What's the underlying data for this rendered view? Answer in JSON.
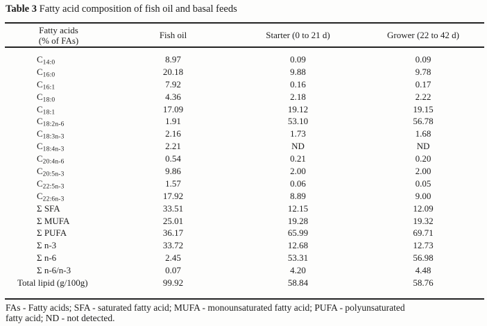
{
  "title": {
    "bold": "Table 3",
    "rest": " Fatty acid composition of fish oil and basal feeds"
  },
  "table": {
    "header": {
      "col1_line1": "Fatty acids",
      "col1_line2": "(% of FAs)",
      "col2": "Fish oil",
      "col3": "Starter (0 to 21 d)",
      "col4": "Grower (22 to 42 d)"
    },
    "rows": [
      {
        "base": "C",
        "sub": "14:0",
        "values": [
          "8.97",
          "0.09",
          "0.09"
        ]
      },
      {
        "base": "C",
        "sub": "16:0",
        "values": [
          "20.18",
          "9.88",
          "9.78"
        ]
      },
      {
        "base": "C",
        "sub": "16:1",
        "values": [
          "7.92",
          "0.16",
          "0.17"
        ]
      },
      {
        "base": "C",
        "sub": "18:0",
        "values": [
          "4.36",
          "2.18",
          "2.22"
        ]
      },
      {
        "base": "C",
        "sub": "18:1",
        "values": [
          "17.09",
          "19.12",
          "19.15"
        ]
      },
      {
        "base": "C",
        "sub": "18:2n-6",
        "values": [
          "1.91",
          "53.10",
          "56.78"
        ]
      },
      {
        "base": "C",
        "sub": "18:3n-3",
        "values": [
          "2.16",
          "1.73",
          "1.68"
        ]
      },
      {
        "base": "C",
        "sub": "18:4n-3",
        "values": [
          "2.21",
          "ND",
          "ND"
        ]
      },
      {
        "base": "C",
        "sub": "20:4n-6",
        "values": [
          "0.54",
          "0.21",
          "0.20"
        ]
      },
      {
        "base": "C",
        "sub": "20:5n-3",
        "values": [
          "9.86",
          "2.00",
          "2.00"
        ]
      },
      {
        "base": "C",
        "sub": "22:5n-3",
        "values": [
          "1.57",
          "0.06",
          "0.05"
        ]
      },
      {
        "base": "C",
        "sub": "22:6n-3",
        "values": [
          "17.92",
          "8.89",
          "9.00"
        ]
      },
      {
        "base": "Σ SFA",
        "sub": "",
        "values": [
          "33.51",
          "12.15",
          "12.09"
        ]
      },
      {
        "base": "Σ MUFA",
        "sub": "",
        "values": [
          "25.01",
          "19.28",
          "19.32"
        ]
      },
      {
        "base": "Σ PUFA",
        "sub": "",
        "values": [
          "36.17",
          "65.99",
          "69.71"
        ]
      },
      {
        "base": "Σ n-3",
        "sub": "",
        "values": [
          "33.72",
          "12.68",
          "12.73"
        ]
      },
      {
        "base": "Σ n-6",
        "sub": "",
        "values": [
          "2.45",
          "53.31",
          "56.98"
        ]
      },
      {
        "base": "Σ n-6/n-3",
        "sub": "",
        "values": [
          "0.07",
          "4.20",
          "4.48"
        ]
      },
      {
        "base": "Total lipid (g/100g)",
        "sub": "",
        "values": [
          "99.92",
          "58.84",
          "58.76"
        ]
      }
    ]
  },
  "footnote": "FAs - Fatty acids; SFA - saturated fatty acid; MUFA - monounsaturated fatty acid; PUFA - polyunsaturated\nfatty acid; ND - not detected.",
  "colors": {
    "text": "#1e1e1e",
    "rule": "#222222",
    "background": "#fdfdfc"
  }
}
